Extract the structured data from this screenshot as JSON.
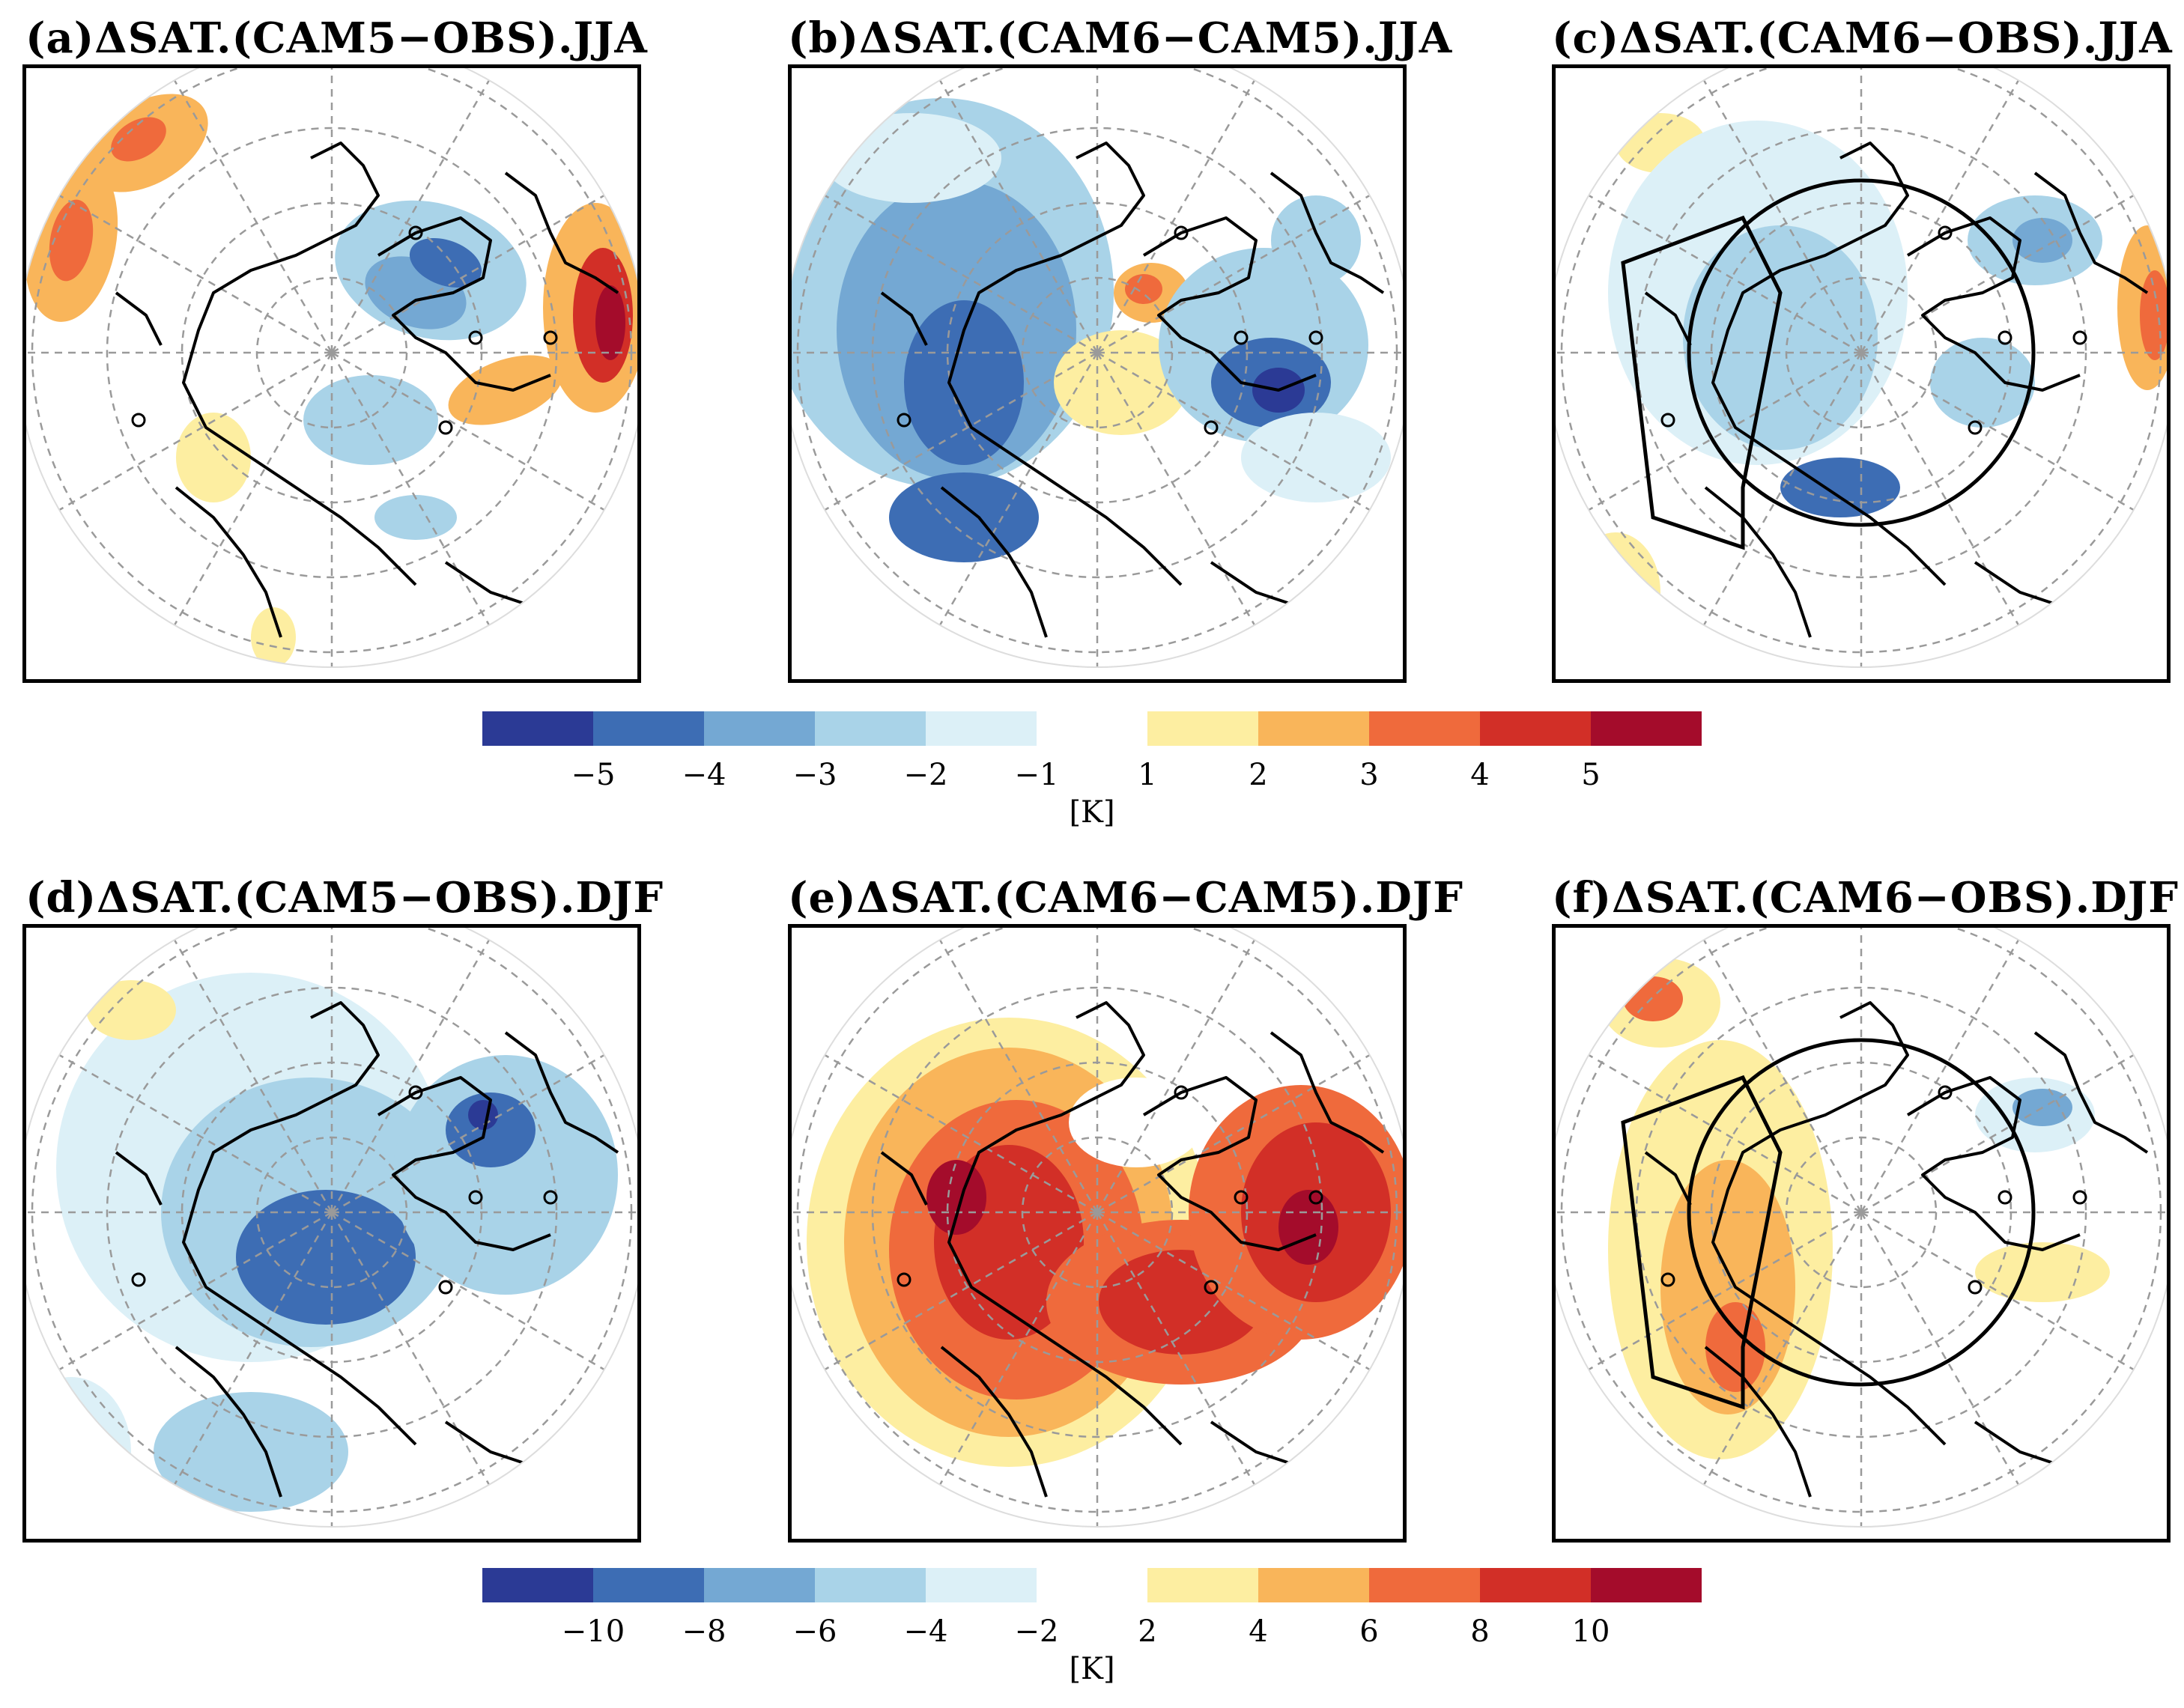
{
  "panels": [
    {
      "id": "a",
      "title": "(a)ΔSAT.(CAM5−OBS).JJA",
      "region_box": false
    },
    {
      "id": "b",
      "title": "(b)ΔSAT.(CAM6−CAM5).JJA",
      "region_box": false
    },
    {
      "id": "c",
      "title": "(c)ΔSAT.(CAM6−OBS).JJA",
      "region_box": true
    },
    {
      "id": "d",
      "title": "(d)ΔSAT.(CAM5−OBS).DJF",
      "region_box": false
    },
    {
      "id": "e",
      "title": "(e)ΔSAT.(CAM6−CAM5).DJF",
      "region_box": false
    },
    {
      "id": "f",
      "title": "(f)ΔSAT.(CAM6−OBS).DJF",
      "region_box": true
    }
  ],
  "colorbars": [
    {
      "ticks": [
        "−5",
        "−4",
        "−3",
        "−2",
        "−1",
        "1",
        "2",
        "3",
        "4",
        "5"
      ],
      "unit": "[K]"
    },
    {
      "ticks": [
        "−10",
        "−8",
        "−6",
        "−4",
        "−2",
        "2",
        "4",
        "6",
        "8",
        "10"
      ],
      "unit": "[K]"
    }
  ],
  "colors": {
    "neg": [
      "#2b3a95",
      "#3d6db4",
      "#74a8d3",
      "#a9d3e8",
      "#dcf0f7"
    ],
    "pos": [
      "#fdeea1",
      "#f9b55a",
      "#ef6a3c",
      "#d22f27",
      "#a40c2b"
    ],
    "zero": "#ffffff"
  },
  "chart_data": {
    "type": "map",
    "projection": "north polar stereographic",
    "variable": "ΔSAT (surface air temperature difference)",
    "unit": "K",
    "seasons": [
      "JJA",
      "DJF"
    ],
    "jja_levels": [
      -5,
      -4,
      -3,
      -2,
      -1,
      1,
      2,
      3,
      4,
      5
    ],
    "djf_levels": [
      -10,
      -8,
      -6,
      -4,
      -2,
      2,
      4,
      6,
      8,
      10
    ]
  }
}
